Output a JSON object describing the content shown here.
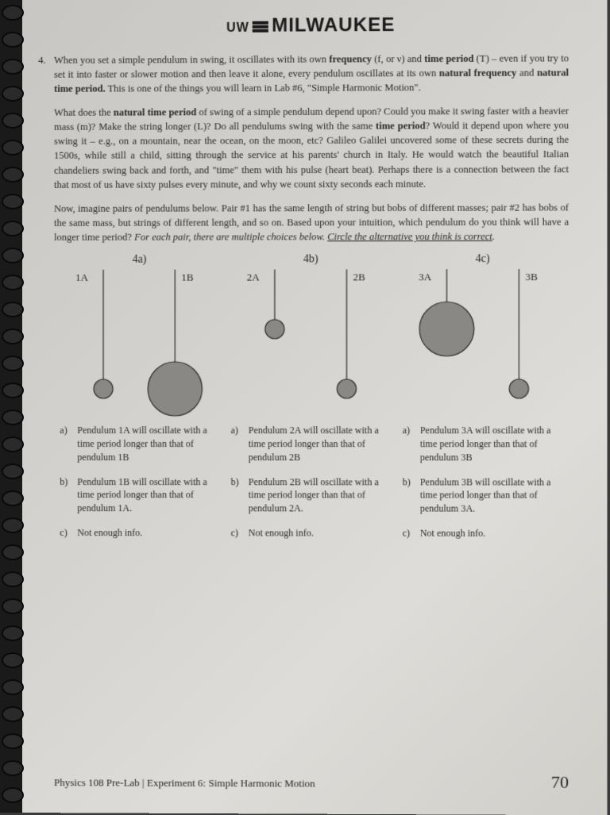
{
  "header": {
    "prefix": "UW",
    "main": "MILWAUKEE"
  },
  "question_number": "4.",
  "para1_a": "When you set a simple pendulum in swing, it oscillates with its own ",
  "para1_b": "frequency",
  "para1_c": " (f, or ν) and ",
  "para1_d": "time period",
  "para1_e": " (T) – even if you try to set it into faster or slower motion and then leave it alone, every pendulum oscillates at its own ",
  "para1_f": "natural frequency",
  "para1_g": " and ",
  "para1_h": "natural time period.",
  "para1_i": " This is one of the things you will learn in Lab #6, \"Simple Harmonic Motion\".",
  "para2_a": "What does the ",
  "para2_b": "natural time period",
  "para2_c": " of swing of a simple pendulum depend upon? Could you make it swing faster with a heavier mass (m)? Make the string longer (L)? Do all pendulums swing with the same ",
  "para2_d": "time period",
  "para2_e": "? Would it depend upon where you swing it – e.g., on a mountain, near the ocean, on the moon, etc? Galileo Galilei uncovered some of these secrets during the 1500s, while still a child, sitting through the service at his parents' church in Italy. He would watch the beautiful Italian chandeliers swing back and forth, and \"time\" them with his pulse (heart beat). Perhaps there is a connection between the fact that most of us have sixty pulses every minute, and why we count sixty seconds each minute.",
  "para3_a": "Now, imagine pairs of pendulums below. Pair #1 has the same length of string but bobs of different masses; pair #2 has bobs of the same mass, but strings of different length, and so on. Based upon your intuition, which pendulum do you think will have a longer time period? ",
  "para3_b": "For each pair, there are multiple choices below. ",
  "para3_c": "Circle the alternative you think is correct",
  "para3_d": ".",
  "pairs": [
    {
      "title": "4a)",
      "left_label": "1A",
      "right_label": "1B",
      "left_len": 150,
      "left_r": 12,
      "right_len": 150,
      "right_r": 34,
      "colors": {
        "string": "#2a2a2a",
        "bob_fill": "#8a8884",
        "bob_stroke": "#2a2a2a"
      }
    },
    {
      "title": "4b)",
      "left_label": "2A",
      "right_label": "2B",
      "left_len": 75,
      "left_r": 12,
      "right_len": 150,
      "right_r": 12,
      "colors": {
        "string": "#2a2a2a",
        "bob_fill": "#8a8884",
        "bob_stroke": "#2a2a2a"
      }
    },
    {
      "title": "4c)",
      "left_label": "3A",
      "right_label": "3B",
      "left_len": 75,
      "left_r": 34,
      "right_len": 150,
      "right_r": 12,
      "colors": {
        "string": "#2a2a2a",
        "bob_fill": "#8a8884",
        "bob_stroke": "#2a2a2a"
      }
    }
  ],
  "choices": [
    {
      "a": "Pendulum 1A will oscillate with a time period longer than that of pendulum 1B",
      "b": "Pendulum 1B will oscillate with a time period longer than that of pendulum 1A.",
      "c": "Not enough info."
    },
    {
      "a": "Pendulum 2A will oscillate with a time period longer than that of pendulum 2B",
      "b": "Pendulum 2B will oscillate with a time period longer than that of pendulum 2A.",
      "c": "Not enough info."
    },
    {
      "a": "Pendulum 3A will oscillate with a time period longer than that of pendulum 3B",
      "b": "Pendulum 3B will oscillate with a time period longer than that of pendulum 3A.",
      "c": "Not enough info."
    }
  ],
  "footer": {
    "left": "Physics 108 Pre-Lab |  Experiment 6: Simple Harmonic Motion",
    "page": "70"
  }
}
